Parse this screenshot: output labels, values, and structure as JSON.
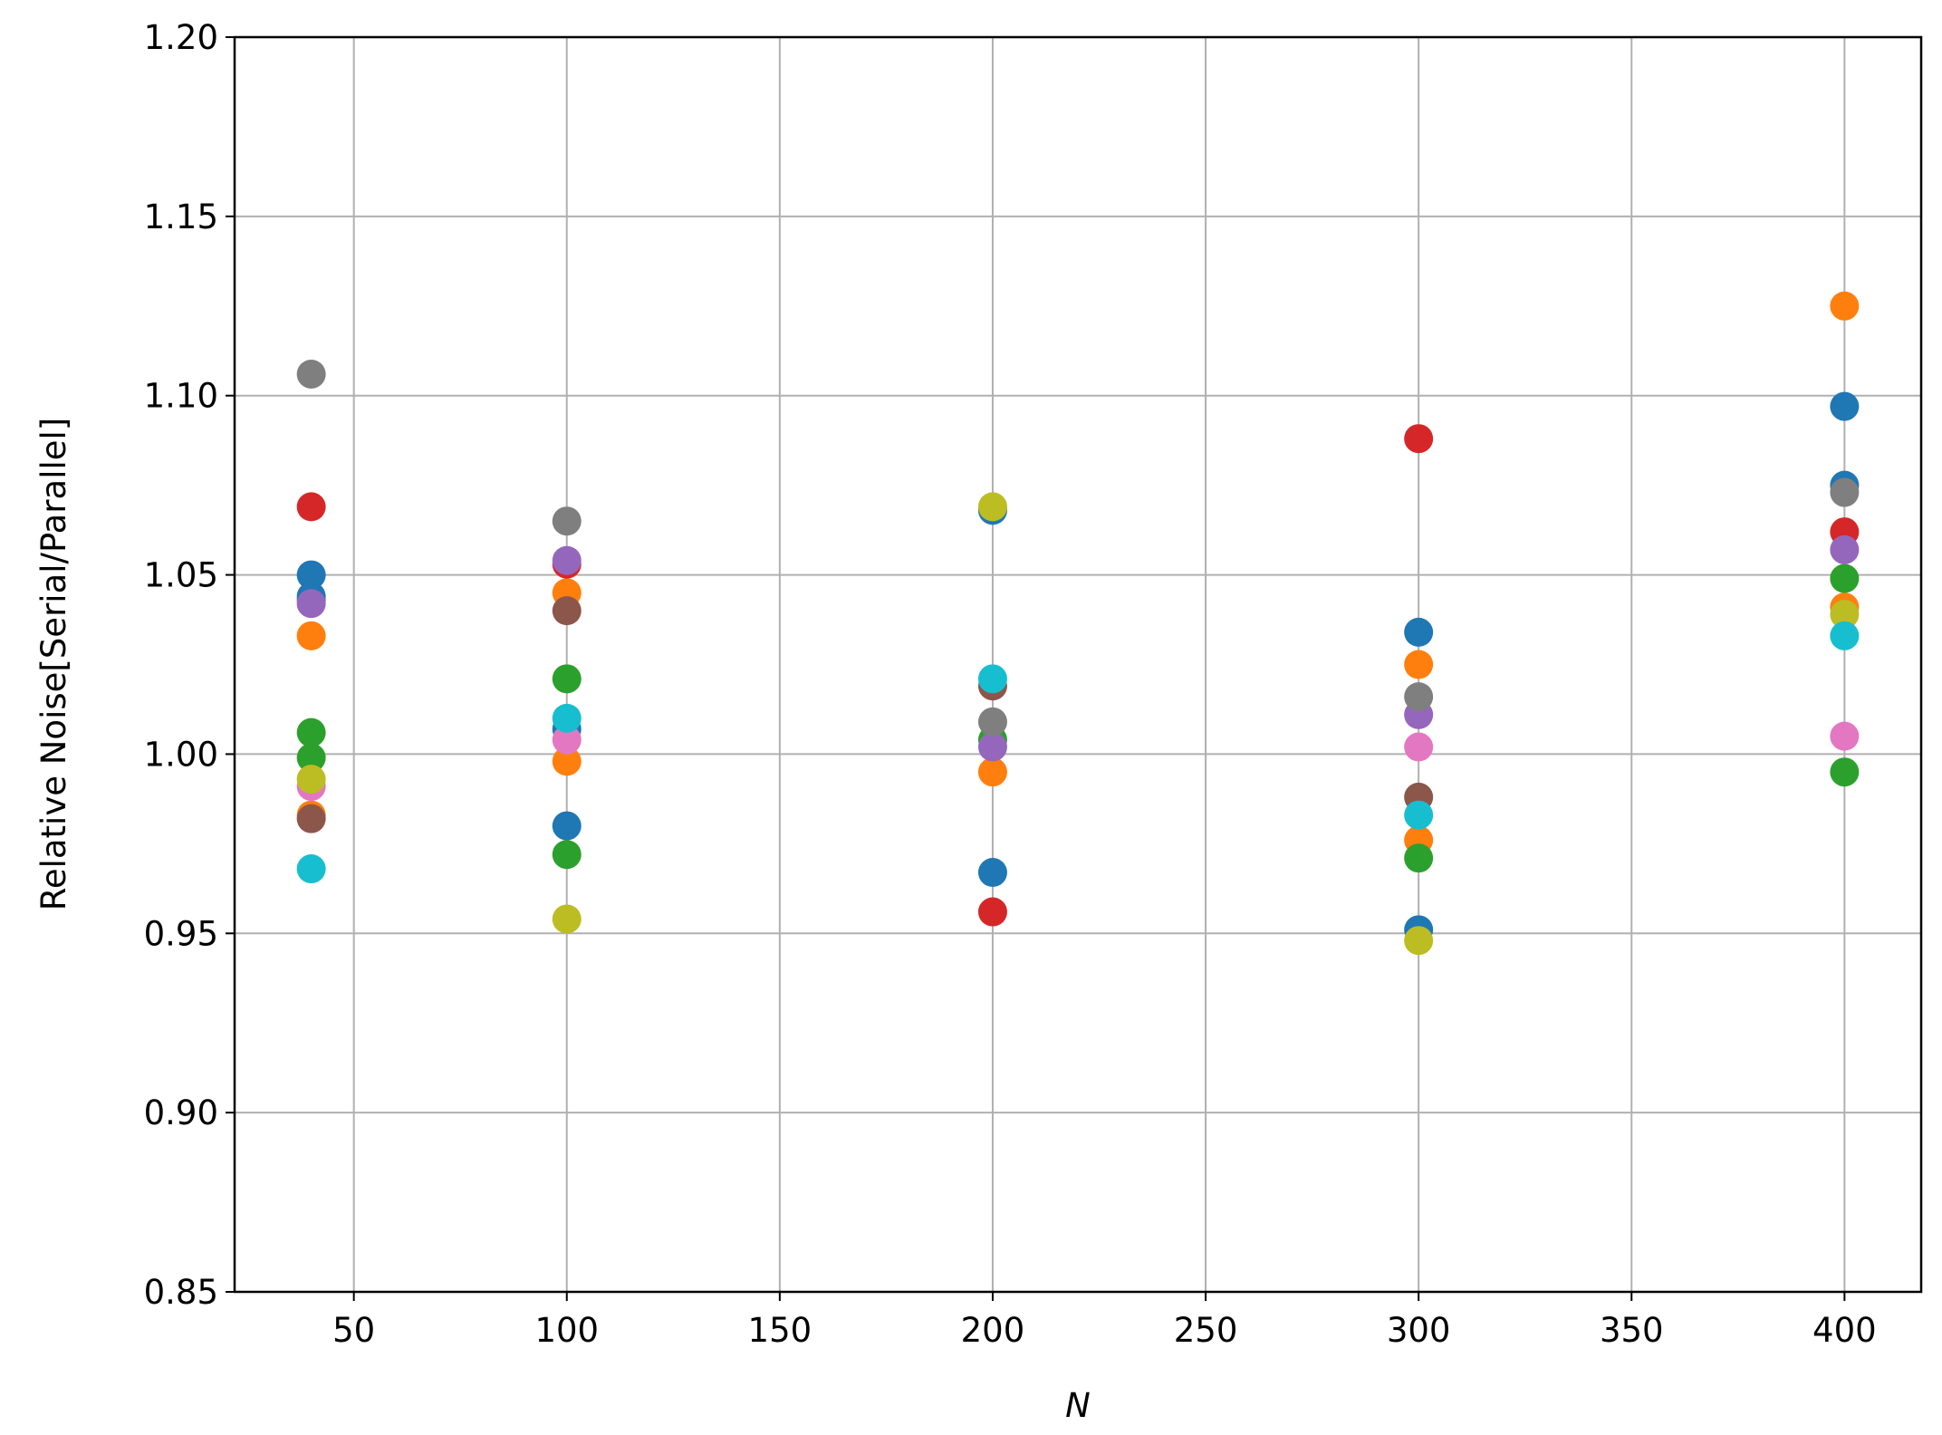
{
  "chart_data": {
    "type": "scatter",
    "xlabel": "N",
    "ylabel": "Relative Noise[Serial/Parallel]",
    "xlim": [
      22,
      418
    ],
    "ylim": [
      0.85,
      1.2
    ],
    "xticks": [
      50,
      100,
      150,
      200,
      250,
      300,
      350,
      400
    ],
    "yticks": [
      0.85,
      {
        "value": 0.9,
        "label": "0.90"
      },
      0.95,
      {
        "value": 1.0,
        "label": "1.00"
      },
      1.05,
      {
        "value": 1.1,
        "label": "1.10"
      },
      1.15,
      {
        "value": 1.2,
        "label": "1.20"
      }
    ],
    "grid": true,
    "series": [
      {
        "color": "#1f77b4",
        "x": [
          40,
          40,
          40,
          100,
          100,
          200,
          200,
          300,
          300,
          400,
          400
        ],
        "values": [
          1.05,
          1.043,
          1.044,
          1.007,
          0.98,
          1.068,
          0.967,
          1.034,
          0.951,
          1.097,
          1.075
        ]
      },
      {
        "color": "#ff7f0e",
        "x": [
          40,
          40,
          100,
          100,
          200,
          300,
          300,
          400,
          400
        ],
        "values": [
          1.033,
          0.983,
          1.045,
          0.998,
          0.995,
          1.025,
          0.976,
          1.125,
          1.041
        ]
      },
      {
        "color": "#2ca02c",
        "x": [
          40,
          40,
          100,
          100,
          200,
          300,
          400,
          400
        ],
        "values": [
          1.006,
          0.999,
          1.021,
          0.972,
          1.004,
          0.971,
          1.049,
          0.995
        ]
      },
      {
        "color": "#d62728",
        "x": [
          40,
          100,
          200,
          300,
          400
        ],
        "values": [
          1.069,
          1.053,
          0.956,
          1.088,
          1.062
        ]
      },
      {
        "color": "#9467bd",
        "x": [
          40,
          100,
          200,
          300,
          400
        ],
        "values": [
          1.042,
          1.054,
          1.002,
          1.011,
          1.057
        ]
      },
      {
        "color": "#8c564b",
        "x": [
          40,
          100,
          200,
          300
        ],
        "values": [
          0.982,
          1.04,
          1.019,
          0.988
        ]
      },
      {
        "color": "#e377c2",
        "x": [
          40,
          100,
          300,
          400
        ],
        "values": [
          0.991,
          1.004,
          1.002,
          1.005
        ]
      },
      {
        "color": "#7f7f7f",
        "x": [
          40,
          100,
          200,
          300,
          400
        ],
        "values": [
          1.106,
          1.065,
          1.009,
          1.016,
          1.073
        ]
      },
      {
        "color": "#bcbd22",
        "x": [
          40,
          100,
          200,
          300,
          400
        ],
        "values": [
          0.993,
          0.954,
          1.069,
          0.948,
          1.039
        ]
      },
      {
        "color": "#17becf",
        "x": [
          40,
          100,
          200,
          300,
          400
        ],
        "values": [
          0.968,
          1.01,
          1.021,
          0.983,
          1.033
        ]
      }
    ]
  }
}
